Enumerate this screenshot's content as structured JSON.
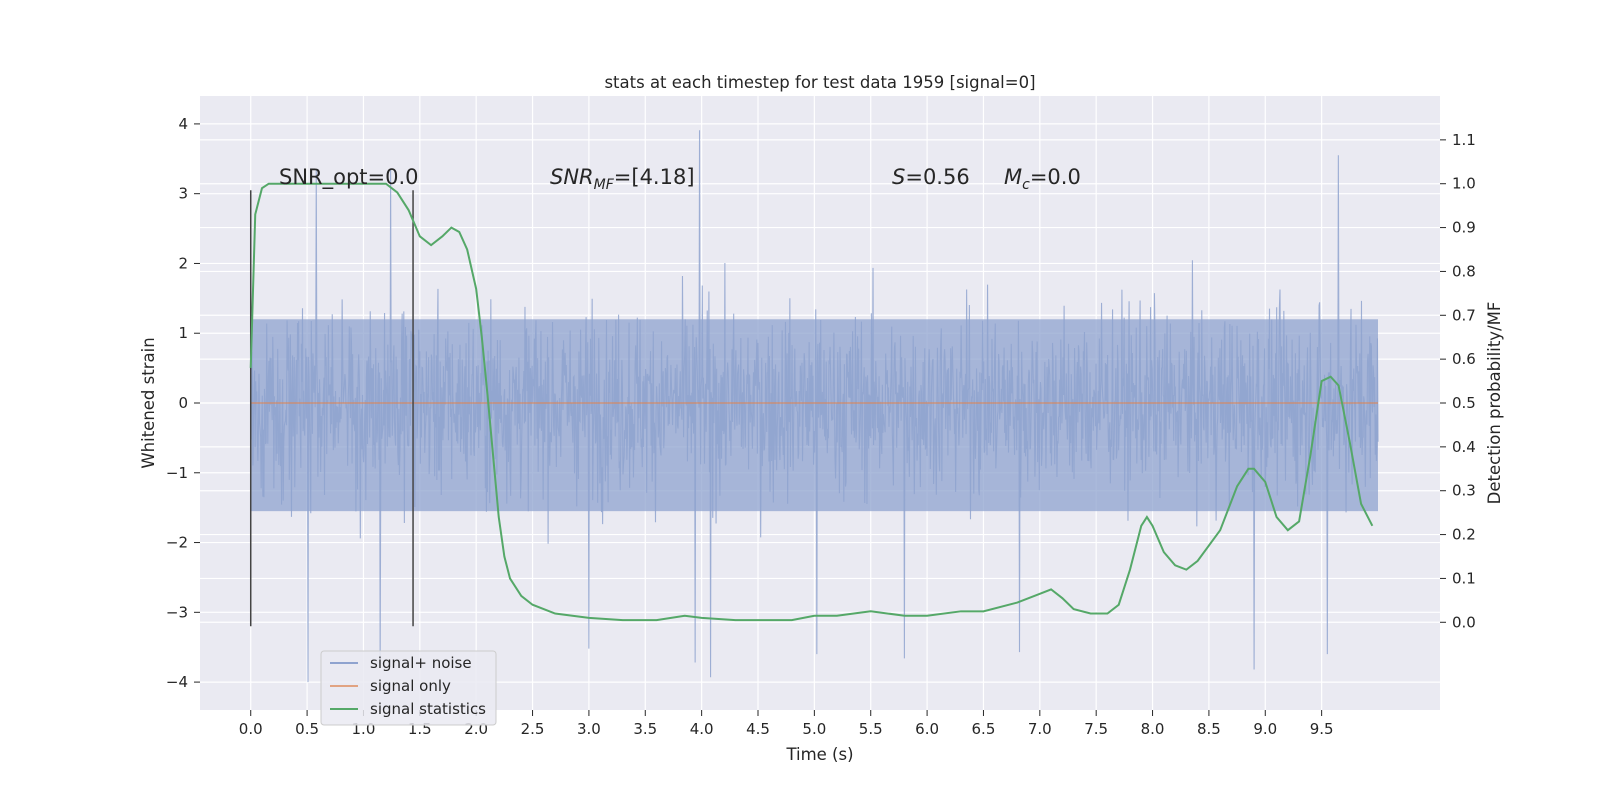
{
  "chart_data": {
    "type": "line",
    "title": "stats at each timestep for test data 1959 [signal=0]",
    "xlabel": "Time (s)",
    "ylabel": "Whitened strain",
    "ylabel_right": "Detection probability/MF",
    "xlim": [
      -0.45,
      10.55
    ],
    "ylim": [
      -4.4,
      4.4
    ],
    "ylim_right": [
      -0.2,
      1.2
    ],
    "x_ticks": [
      "0.0",
      "0.5",
      "1.0",
      "1.5",
      "2.0",
      "2.5",
      "3.0",
      "3.5",
      "4.0",
      "4.5",
      "5.0",
      "5.5",
      "6.0",
      "6.5",
      "7.0",
      "7.5",
      "8.0",
      "8.5",
      "9.0",
      "9.5"
    ],
    "y_ticks": [
      "−4",
      "−3",
      "−2",
      "−1",
      "0",
      "1",
      "2",
      "3",
      "4"
    ],
    "y_ticks_right": [
      "0.0",
      "0.1",
      "0.2",
      "0.3",
      "0.4",
      "0.5",
      "0.6",
      "0.7",
      "0.8",
      "0.9",
      "1.0",
      "1.1"
    ],
    "grid": true,
    "legend_position": "lower-left",
    "annotations": {
      "snr_opt": "SNR_opt=0.0",
      "snr_mf_base": "SNR",
      "snr_mf_sub": "MF",
      "snr_mf_tail": "=[4.18]",
      "s": "=0.56",
      "s_sym": "S",
      "mc_sym": "M",
      "mc_sub": "c",
      "mc_tail": "=0.0"
    },
    "window_markers": {
      "x": [
        0.0,
        1.44
      ],
      "ymin": -3.2,
      "ymax": 3.05
    },
    "series": [
      {
        "name": "signal+ noise",
        "color": "#8fa3cf",
        "x_range": [
          0.0,
          10.0
        ],
        "envelope_upper_typical": 1.2,
        "envelope_lower_typical": -1.55,
        "peaks": [
          [
            0.58,
            3.33
          ],
          [
            1.24,
            3.35
          ],
          [
            3.98,
            3.91
          ],
          [
            9.65,
            3.55
          ],
          [
            0.51,
            -4.0
          ],
          [
            1.15,
            -3.78
          ],
          [
            3.94,
            -3.72
          ],
          [
            4.08,
            -3.93
          ],
          [
            8.9,
            -3.82
          ],
          [
            9.55,
            -3.6
          ],
          [
            3.0,
            -3.52
          ],
          [
            5.02,
            -3.6
          ],
          [
            5.8,
            -3.66
          ],
          [
            6.82,
            -3.57
          ]
        ]
      },
      {
        "name": "signal only",
        "color": "#dd8452",
        "x": [
          0.0,
          10.0
        ],
        "y": [
          0.0,
          0.0
        ]
      },
      {
        "name": "signal statistics",
        "color": "#55a868",
        "axis": "right",
        "x": [
          0.0,
          0.04,
          0.1,
          0.16,
          0.25,
          0.5,
          1.0,
          1.2,
          1.3,
          1.4,
          1.5,
          1.6,
          1.7,
          1.78,
          1.85,
          1.92,
          2.0,
          2.05,
          2.1,
          2.15,
          2.2,
          2.25,
          2.3,
          2.4,
          2.5,
          2.7,
          3.0,
          3.3,
          3.6,
          3.85,
          4.0,
          4.3,
          4.6,
          4.8,
          5.0,
          5.2,
          5.5,
          5.8,
          6.0,
          6.3,
          6.5,
          6.8,
          7.0,
          7.1,
          7.2,
          7.3,
          7.45,
          7.6,
          7.7,
          7.8,
          7.9,
          7.95,
          8.0,
          8.1,
          8.2,
          8.3,
          8.4,
          8.6,
          8.75,
          8.85,
          8.9,
          9.0,
          9.1,
          9.2,
          9.3,
          9.4,
          9.5,
          9.58,
          9.65,
          9.75,
          9.85,
          9.95
        ],
        "y": [
          0.58,
          0.93,
          0.99,
          1.0,
          1.0,
          1.0,
          1.0,
          1.0,
          0.98,
          0.94,
          0.88,
          0.86,
          0.88,
          0.9,
          0.89,
          0.85,
          0.76,
          0.65,
          0.52,
          0.38,
          0.24,
          0.15,
          0.1,
          0.06,
          0.04,
          0.02,
          0.01,
          0.005,
          0.005,
          0.015,
          0.01,
          0.005,
          0.005,
          0.005,
          0.015,
          0.015,
          0.025,
          0.015,
          0.015,
          0.025,
          0.025,
          0.045,
          0.065,
          0.075,
          0.055,
          0.03,
          0.02,
          0.02,
          0.04,
          0.12,
          0.22,
          0.24,
          0.22,
          0.16,
          0.13,
          0.12,
          0.14,
          0.21,
          0.31,
          0.35,
          0.35,
          0.32,
          0.24,
          0.21,
          0.23,
          0.38,
          0.55,
          0.56,
          0.54,
          0.41,
          0.27,
          0.22
        ]
      }
    ]
  }
}
